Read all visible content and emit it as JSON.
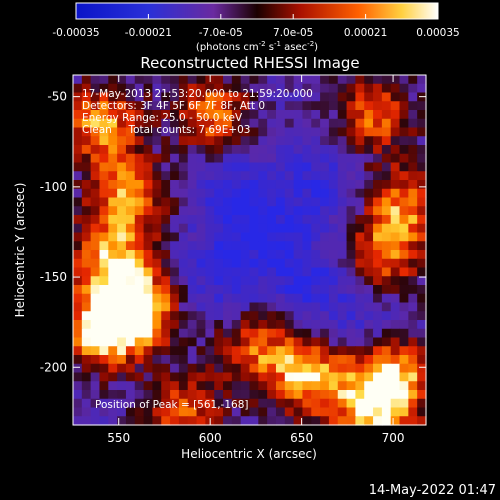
{
  "colorbar": {
    "ticks": [
      "-0.00035",
      "-0.00021",
      "-7.0e-05",
      "7.0e-05",
      "0.00021",
      "0.00035"
    ],
    "units_main": "(photons cm",
    "units_sup1": "-2",
    "units_mid": " s",
    "units_sup2": "-1",
    "units_mid2": " asec",
    "units_sup3": "-2",
    "units_end": ")"
  },
  "chart_data": {
    "type": "heatmap",
    "title": "Reconstructed RHESSI Image",
    "xlabel": "Heliocentric X (arcsec)",
    "ylabel": "Heliocentric Y (arcsec)",
    "xlim": [
      525,
      718
    ],
    "ylim": [
      -232,
      -38
    ],
    "x_ticks": [
      "550",
      "600",
      "650",
      "700"
    ],
    "x_tick_values": [
      550,
      600,
      650,
      700
    ],
    "y_ticks": [
      "-50",
      "-100",
      "-150",
      "-200"
    ],
    "y_tick_values": [
      -50,
      -100,
      -150,
      -200
    ],
    "annotations": [
      "17-May-2013 21:53:20.000 to 21:59:20.000",
      "Detectors: 3F 4F 5F 6F 7F 8F, Att 0",
      "Energy Range: 25.0 - 50.0 keV",
      "Clean     Total counts: 7.69E+03"
    ],
    "peak_label": "Position of Peak = [561,-168]",
    "peak": [
      561,
      -168
    ],
    "value_range": [
      -0.00035,
      0.00035
    ],
    "hot_regions": [
      {
        "x": 561,
        "y": -168,
        "level": 1.0
      },
      {
        "x": 540,
        "y": -180,
        "level": 0.85
      },
      {
        "x": 545,
        "y": -140,
        "level": 0.75
      },
      {
        "x": 555,
        "y": -105,
        "level": 0.7
      },
      {
        "x": 540,
        "y": -65,
        "level": 0.72
      },
      {
        "x": 600,
        "y": -60,
        "level": 0.62
      },
      {
        "x": 690,
        "y": -60,
        "level": 0.55
      },
      {
        "x": 705,
        "y": -110,
        "level": 0.6
      },
      {
        "x": 695,
        "y": -140,
        "level": 0.55
      },
      {
        "x": 655,
        "y": -205,
        "level": 0.8
      },
      {
        "x": 700,
        "y": -205,
        "level": 0.75
      },
      {
        "x": 690,
        "y": -225,
        "level": 0.7
      },
      {
        "x": 585,
        "y": -225,
        "level": 0.55
      },
      {
        "x": 625,
        "y": -190,
        "level": 0.5
      }
    ],
    "cold_regions": [
      {
        "x": 625,
        "y": -120,
        "level": -0.9
      },
      {
        "x": 650,
        "y": -150,
        "level": -0.9
      },
      {
        "x": 605,
        "y": -150,
        "level": -0.75
      },
      {
        "x": 660,
        "y": -100,
        "level": -0.8
      },
      {
        "x": 680,
        "y": -170,
        "level": -0.7
      },
      {
        "x": 610,
        "y": -100,
        "level": -0.7
      }
    ]
  },
  "footer_date": "14-May-2022 01:47"
}
